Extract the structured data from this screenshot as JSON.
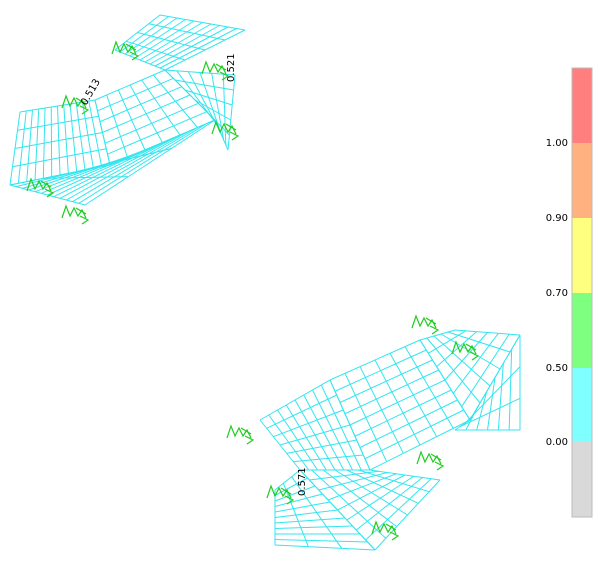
{
  "element_labels": [
    "0.521",
    "0.513",
    "0.571"
  ],
  "legend": {
    "labels": [
      "1.00",
      "0.90",
      "0.70",
      "0.50",
      "0.00"
    ]
  }
}
